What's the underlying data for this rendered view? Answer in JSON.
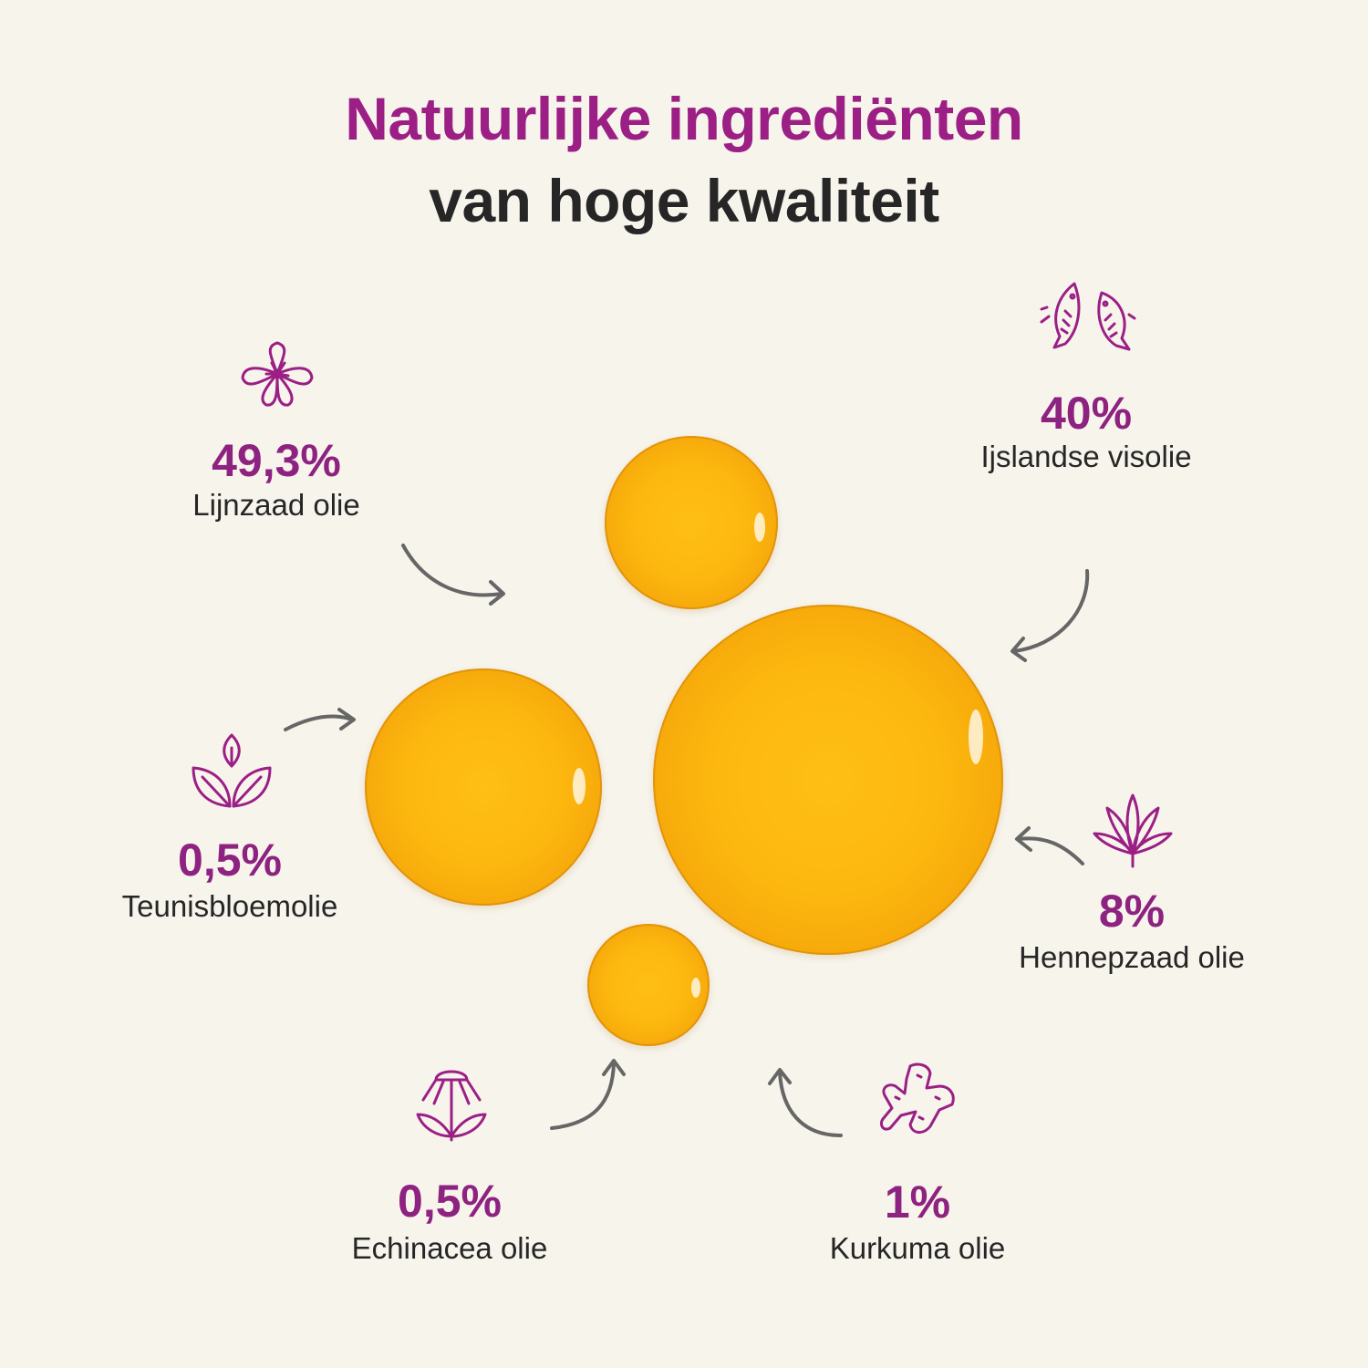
{
  "title": {
    "line1": "Natuurlijke ingrediënten",
    "line2": "van hoge kwaliteit"
  },
  "colors": {
    "accent": "#9b1f85",
    "text": "#262626",
    "background": "#f7f4ec",
    "oil": "#fdb80f",
    "arrow": "#666666"
  },
  "ingredients": [
    {
      "percent": "49,3%",
      "name": "Lijnzaad olie",
      "icon": "flower-icon"
    },
    {
      "percent": "40%",
      "name": "Ijslandse visolie",
      "icon": "fish-icon"
    },
    {
      "percent": "0,5%",
      "name": "Teunisbloemolie",
      "icon": "leaves-icon"
    },
    {
      "percent": "8%",
      "name": "Hennepzaad olie",
      "icon": "hemp-leaf-icon"
    },
    {
      "percent": "0,5%",
      "name": "Echinacea olie",
      "icon": "echinacea-icon"
    },
    {
      "percent": "1%",
      "name": "Kurkuma olie",
      "icon": "turmeric-root-icon"
    }
  ]
}
